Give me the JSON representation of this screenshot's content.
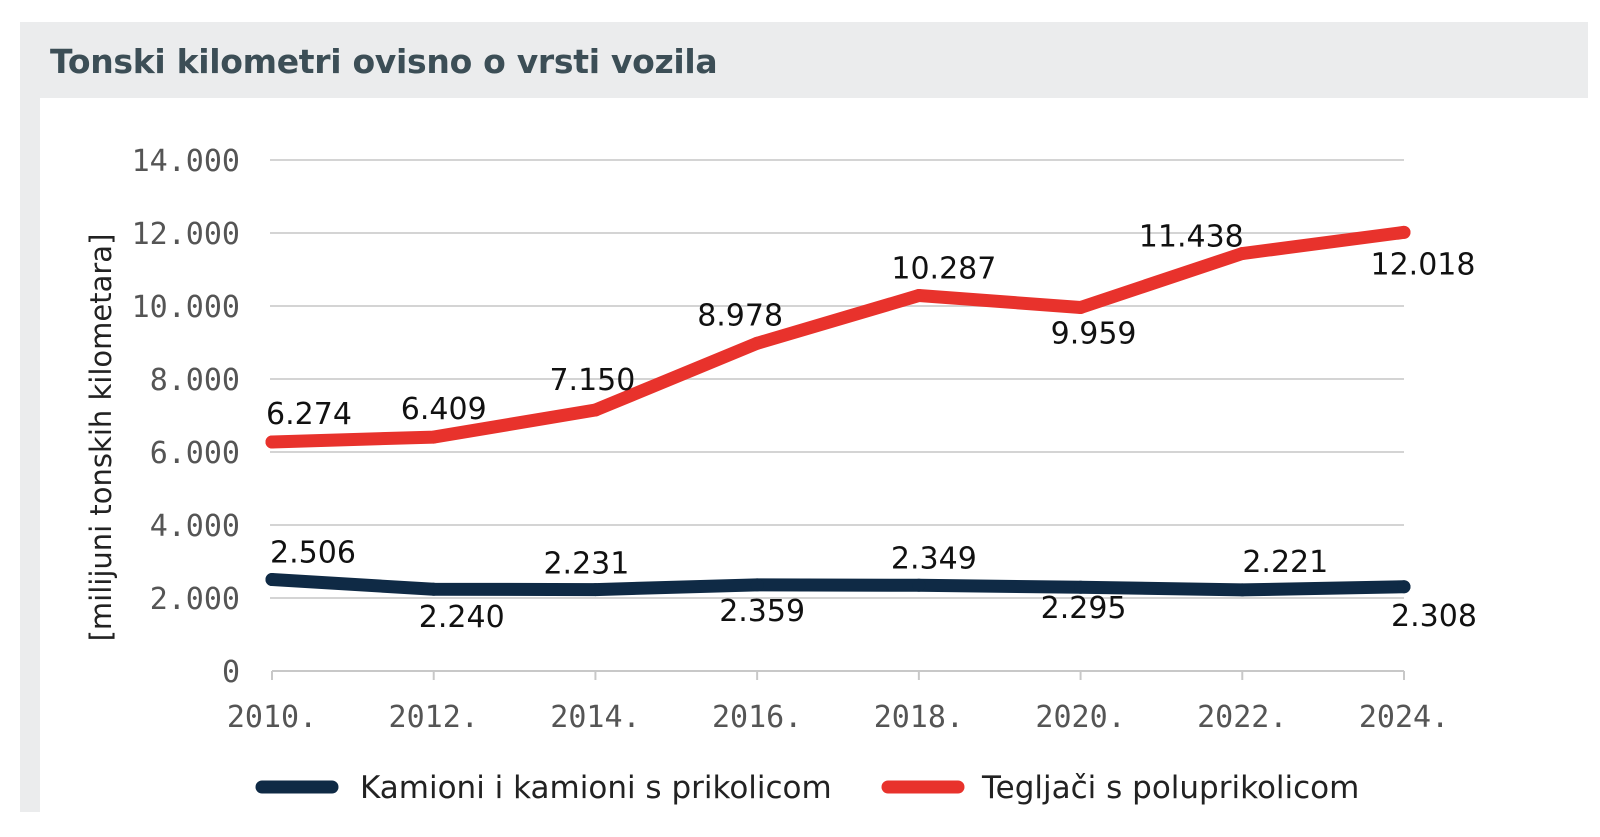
{
  "chart_data": {
    "type": "line",
    "title": "Tonski kilometri ovisno o vrsti vozila",
    "xlabel": "",
    "ylabel": "[milijuni tonskih kilometara]",
    "categories": [
      "2010.",
      "2012.",
      "2014.",
      "2016.",
      "2018.",
      "2020.",
      "2022.",
      "2024."
    ],
    "ylim": [
      0,
      14000
    ],
    "yticks": [
      {
        "value": 0,
        "label": "0"
      },
      {
        "value": 2000,
        "label": "2.000"
      },
      {
        "value": 4000,
        "label": "4.000"
      },
      {
        "value": 6000,
        "label": "6.000"
      },
      {
        "value": 8000,
        "label": "8.000"
      },
      {
        "value": 10000,
        "label": "10.000"
      },
      {
        "value": 12000,
        "label": "12.000"
      },
      {
        "value": 14000,
        "label": "14.000"
      }
    ],
    "grid": true,
    "legend_position": "bottom",
    "series": [
      {
        "name": "Kamioni i kamioni s prikolicom",
        "color": "#0f2a45",
        "values": [
          2506,
          2240,
          2231,
          2359,
          2349,
          2295,
          2221,
          2308
        ],
        "labels": [
          "2.506",
          "2.240",
          "2.231",
          "2.359",
          "2.349",
          "2.295",
          "2.221",
          "2.308"
        ]
      },
      {
        "name": "Tegljači s poluprikolicom",
        "color": "#e8322c",
        "values": [
          6274,
          6409,
          7150,
          8978,
          10287,
          9959,
          11438,
          12018
        ],
        "labels": [
          "6.274",
          "6.409",
          "7.150",
          "8.978",
          "10.287",
          "9.959",
          "11.438",
          "12.018"
        ]
      }
    ]
  }
}
